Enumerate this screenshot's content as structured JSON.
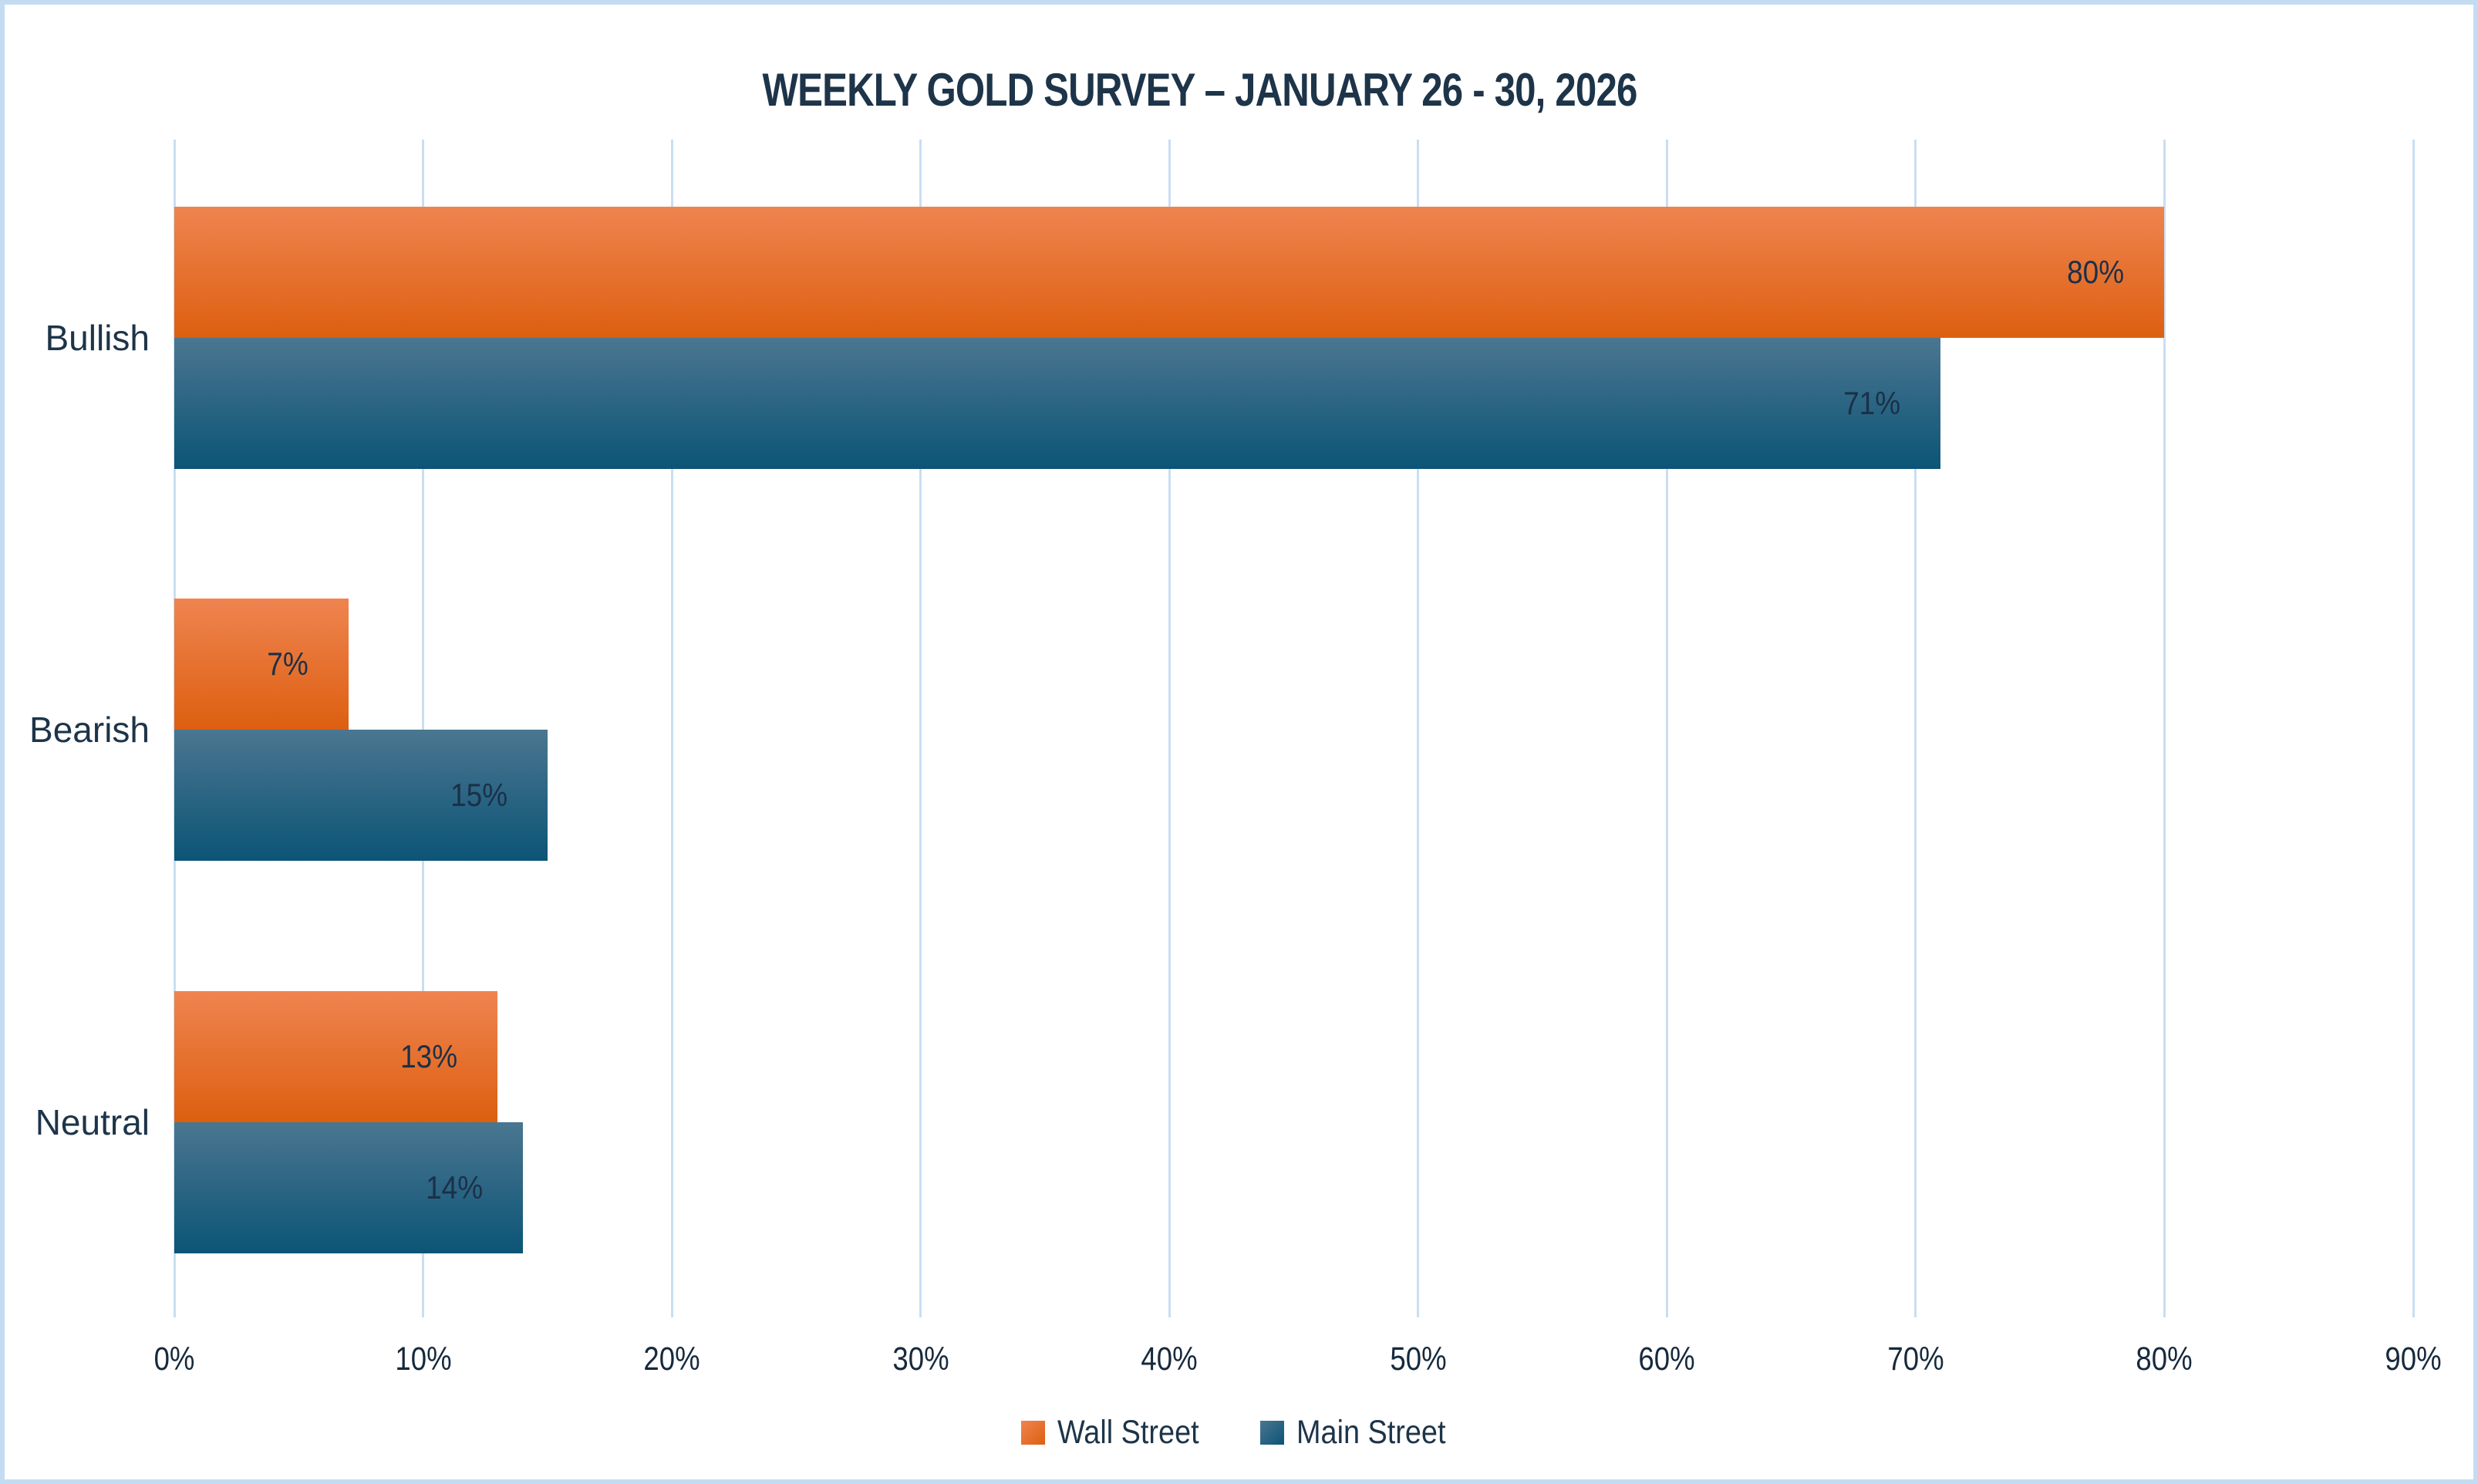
{
  "title": "WEEKLY GOLD SURVEY – JANUARY 26 - 30, 2026",
  "chart_data": {
    "type": "bar",
    "orientation": "horizontal",
    "title": "WEEKLY GOLD SURVEY – JANUARY 26 - 30, 2026",
    "categories": [
      "Bullish",
      "Bearish",
      "Neutral"
    ],
    "series": [
      {
        "name": "Wall Street",
        "values": [
          80,
          7,
          13
        ],
        "color_top": "#EF8450",
        "color_bottom": "#DD5F10"
      },
      {
        "name": "Main Street",
        "values": [
          71,
          15,
          14
        ],
        "color_top": "#4A7690",
        "color_bottom": "#0C5476"
      }
    ],
    "data_label_format": "{v}%",
    "data_labels": {
      "Wall Street": [
        "80%",
        "7%",
        "13%"
      ],
      "Main Street": [
        "71%",
        "15%",
        "14%"
      ]
    },
    "x_ticks": [
      "0%",
      "10%",
      "20%",
      "30%",
      "40%",
      "50%",
      "60%",
      "70%",
      "80%",
      "90%"
    ],
    "xlim": [
      0,
      90
    ],
    "ylabel": "",
    "xlabel": "",
    "grid": true,
    "legend_position": "bottom"
  },
  "colors": {
    "text": "#1D3449",
    "grid": "#C9DEF2",
    "frame_border": "#C3DCF2",
    "background": "#FFFFFF"
  }
}
